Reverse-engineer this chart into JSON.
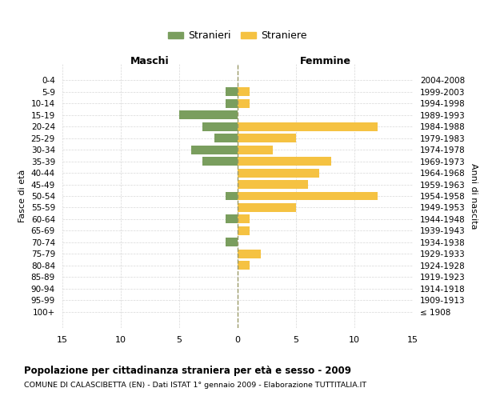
{
  "age_groups": [
    "0-4",
    "5-9",
    "10-14",
    "15-19",
    "20-24",
    "25-29",
    "30-34",
    "35-39",
    "40-44",
    "45-49",
    "50-54",
    "55-59",
    "60-64",
    "65-69",
    "70-74",
    "75-79",
    "80-84",
    "85-89",
    "90-94",
    "95-99",
    "100+"
  ],
  "birth_years": [
    "2004-2008",
    "1999-2003",
    "1994-1998",
    "1989-1993",
    "1984-1988",
    "1979-1983",
    "1974-1978",
    "1969-1973",
    "1964-1968",
    "1959-1963",
    "1954-1958",
    "1949-1953",
    "1944-1948",
    "1939-1943",
    "1934-1938",
    "1929-1933",
    "1924-1928",
    "1919-1923",
    "1914-1918",
    "1909-1913",
    "≤ 1908"
  ],
  "males": [
    0,
    1,
    1,
    5,
    3,
    2,
    4,
    3,
    0,
    0,
    1,
    0,
    1,
    0,
    1,
    0,
    0,
    0,
    0,
    0,
    0
  ],
  "females": [
    0,
    1,
    1,
    0,
    12,
    5,
    3,
    8,
    7,
    6,
    12,
    5,
    1,
    1,
    0,
    2,
    1,
    0,
    0,
    0,
    0
  ],
  "male_color": "#7a9e5e",
  "female_color": "#f5c242",
  "male_label": "Stranieri",
  "female_label": "Straniere",
  "title": "Popolazione per cittadinanza straniera per età e sesso - 2009",
  "subtitle": "COMUNE DI CALASCIBETTA (EN) - Dati ISTAT 1° gennaio 2009 - Elaborazione TUTTITALIA.IT",
  "xlabel_left": "Maschi",
  "xlabel_right": "Femmine",
  "ylabel_left": "Fasce di età",
  "ylabel_right": "Anni di nascita",
  "xlim": 15,
  "background_color": "#ffffff",
  "grid_color": "#d8d8d8"
}
